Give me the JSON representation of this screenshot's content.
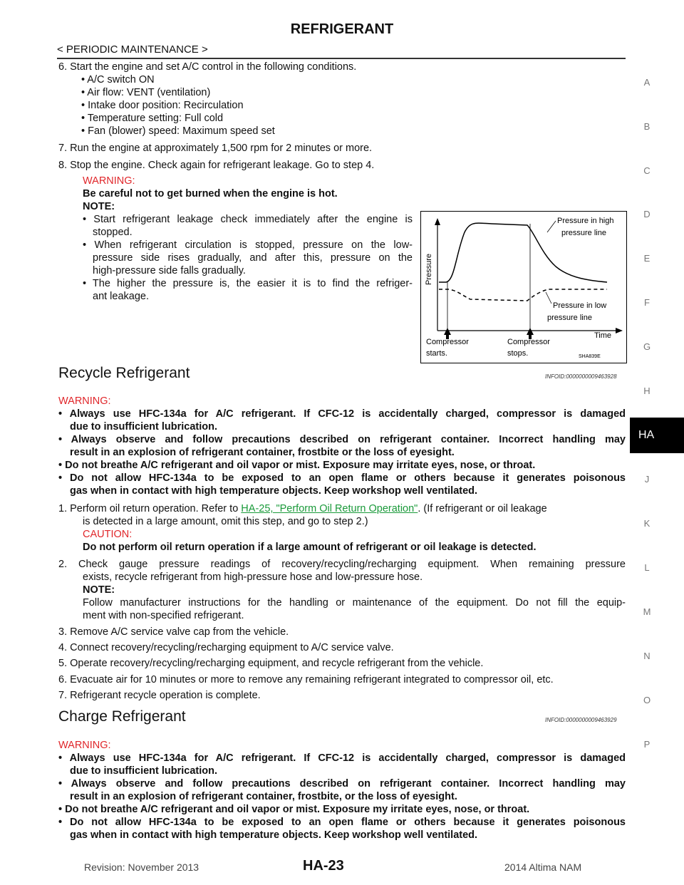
{
  "header": {
    "title": "REFRIGERANT",
    "section": "< PERIODIC MAINTENANCE >"
  },
  "side_index": [
    "A",
    "B",
    "C",
    "D",
    "E",
    "F",
    "G",
    "H",
    "HA",
    "J",
    "K",
    "L",
    "M",
    "N",
    "O",
    "P"
  ],
  "steps_top": {
    "s6": "6.  Start the engine and set A/C control in the following conditions.",
    "s6_items": [
      "• A/C switch ON",
      "• Air flow: VENT (ventilation)",
      "• Intake door position: Recirculation",
      "• Temperature setting: Full cold",
      "• Fan (blower) speed: Maximum speed set"
    ],
    "s7": "7.  Run the engine at approximately 1,500 rpm for 2 minutes or more.",
    "s8": "8.  Stop the engine. Check again for refrigerant leakage. Go to step 4.",
    "warning_label": "WARNING:",
    "warning_text": "Be careful not to get burned when the engine is hot.",
    "note_label": "NOTE:",
    "note_lines": [
      "• Start refrigerant leakage check immediately after the engine is",
      "stopped.",
      "• When refrigerant circulation is stopped, pressure on the low-",
      "pressure side rises gradually, and after this, pressure on the",
      "high-pressure side falls gradually.",
      "• The higher the pressure is, the easier it is to find the refriger-",
      "ant leakage."
    ]
  },
  "figure": {
    "y_label": "Pressure",
    "x_label": "Time",
    "high_label_1": "Pressure  in  high",
    "high_label_2": "pressure  line",
    "low_label_1": "Pressure  in  low",
    "low_label_2": "pressure  line",
    "start_1": "Compressor",
    "start_2": "starts.",
    "stop_1": "Compressor",
    "stop_2": "stops.",
    "code": "SHA839E"
  },
  "recycle": {
    "title": "Recycle Refrigerant",
    "infoid": "INFOID:0000000009463928",
    "warning_label": "WARNING:",
    "warnings": [
      [
        "• Always use HFC-134a for A/C refrigerant. If CFC-12 is accidentally charged, compressor is damaged",
        "due to insufficient lubrication."
      ],
      [
        "• Always observe and follow precautions described on refrigerant container. Incorrect handling may",
        "result in an explosion of refrigerant container, frostbite or the loss of eyesight."
      ],
      [
        "• Do not breathe A/C refrigerant and oil vapor or mist. Exposure may irritate eyes, nose, or throat."
      ],
      [
        "• Do not allow HFC-134a to be exposed to an open flame or others because it generates poisonous",
        "gas when in contact with high temperature objects. Keep workshop well ventilated."
      ]
    ],
    "s1_pre": "1.  Perform oil return operation. Refer to ",
    "s1_link": "HA-25, \"Perform Oil Return Operation\"",
    "s1_post": ". (If refrigerant or oil leakage",
    "s1_line2": "is detected in a large amount, omit this step, and go to step 2.)",
    "caution_label": "CAUTION:",
    "caution_text": "Do not perform oil return operation if a large amount of refrigerant or oil leakage is detected.",
    "s2_line1": "2.  Check gauge pressure readings of recovery/recycling/recharging equipment. When remaining pressure",
    "s2_line2": "exists, recycle refrigerant from high-pressure hose and low-pressure hose.",
    "s2_note_label": "NOTE:",
    "s2_note_1": "Follow manufacturer instructions for the handling or maintenance of the equipment. Do not fill the equip-",
    "s2_note_2": "ment with non-specified refrigerant.",
    "s3": "3.  Remove A/C service valve cap from the vehicle.",
    "s4": "4.  Connect recovery/recycling/recharging equipment to A/C service valve.",
    "s5": "5.  Operate recovery/recycling/recharging equipment, and recycle refrigerant from the vehicle.",
    "s6": "6.  Evacuate air for 10 minutes or more to remove any remaining refrigerant integrated to compressor oil, etc.",
    "s7": "7.  Refrigerant recycle operation is complete."
  },
  "charge": {
    "title": "Charge Refrigerant",
    "infoid": "INFOID:0000000009463929",
    "warning_label": "WARNING:",
    "warnings": [
      [
        "• Always use HFC-134a for A/C refrigerant. If CFC-12 is accidentally charged, compressor is damaged",
        "due to insufficient lubrication."
      ],
      [
        "• Always observe and follow precautions described on refrigerant container. Incorrect handling may",
        "result in an explosion of refrigerant container, frostbite, or the loss of eyesight."
      ],
      [
        "• Do not breathe A/C refrigerant and oil vapor or mist. Exposure my irritate eyes, nose, or throat."
      ],
      [
        "• Do not allow HFC-134a to be exposed to an open flame or others because it generates poisonous",
        "gas when in contact with high temperature objects. Keep workshop well ventilated."
      ]
    ]
  },
  "footer": {
    "revision": "Revision: November 2013",
    "page": "HA-23",
    "model": "2014 Altima NAM"
  }
}
